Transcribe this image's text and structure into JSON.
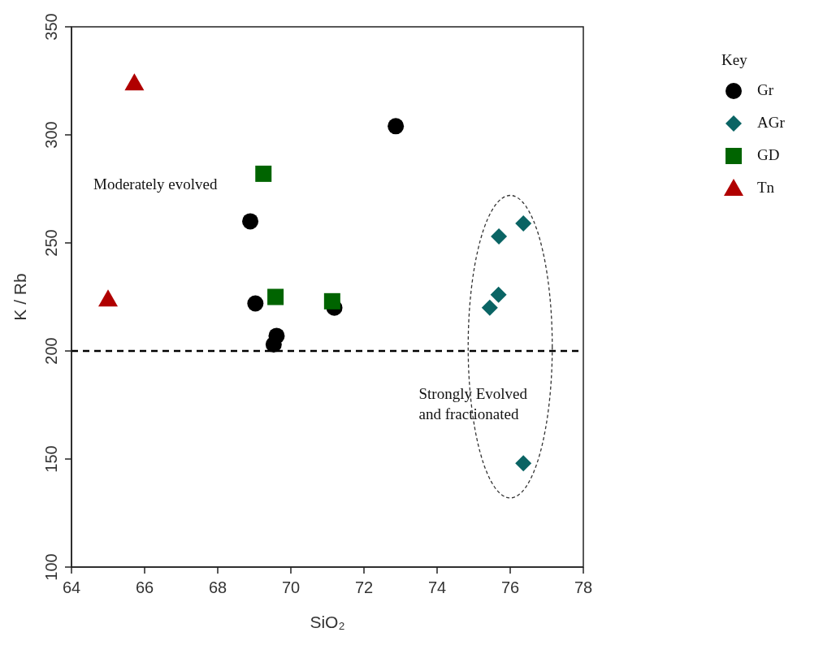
{
  "chart_data": {
    "type": "scatter",
    "xlabel": "SiO₂",
    "ylabel": "K / Rb",
    "legend_title": "Key",
    "legend": "right",
    "xlim": [
      64,
      78
    ],
    "xticks": [
      64,
      66,
      68,
      70,
      72,
      74,
      76,
      78
    ],
    "ylim": [
      100,
      350
    ],
    "yticks": [
      100,
      150,
      200,
      250,
      300,
      350
    ],
    "series": [
      {
        "name": "Gr",
        "color": "#000000",
        "marker": "circle",
        "x": [
          68.89,
          69.03,
          72.87,
          69.61,
          69.53,
          71.19
        ],
        "values": [
          260,
          222,
          304,
          207,
          203,
          220
        ]
      },
      {
        "name": "AGr",
        "color": "#0a6464",
        "marker": "diamond",
        "x": [
          75.69,
          76.36,
          75.68,
          75.44,
          76.36
        ],
        "values": [
          253,
          259,
          226,
          220,
          148
        ]
      },
      {
        "name": "GD",
        "color": "#006400",
        "marker": "square",
        "x": [
          69.25,
          69.58,
          71.13
        ],
        "values": [
          282,
          225,
          223
        ]
      },
      {
        "name": "Tn",
        "color": "#b00000",
        "marker": "triangle",
        "x": [
          65.72,
          65.0
        ],
        "values": [
          324,
          224
        ]
      }
    ],
    "ref_lines": [
      {
        "axis": "y",
        "value": 200,
        "color": "#000000",
        "line_style": "dashed"
      }
    ],
    "annotations": [
      "Moderately evolved",
      "Strongly Evolved\nand fractionated"
    ]
  }
}
